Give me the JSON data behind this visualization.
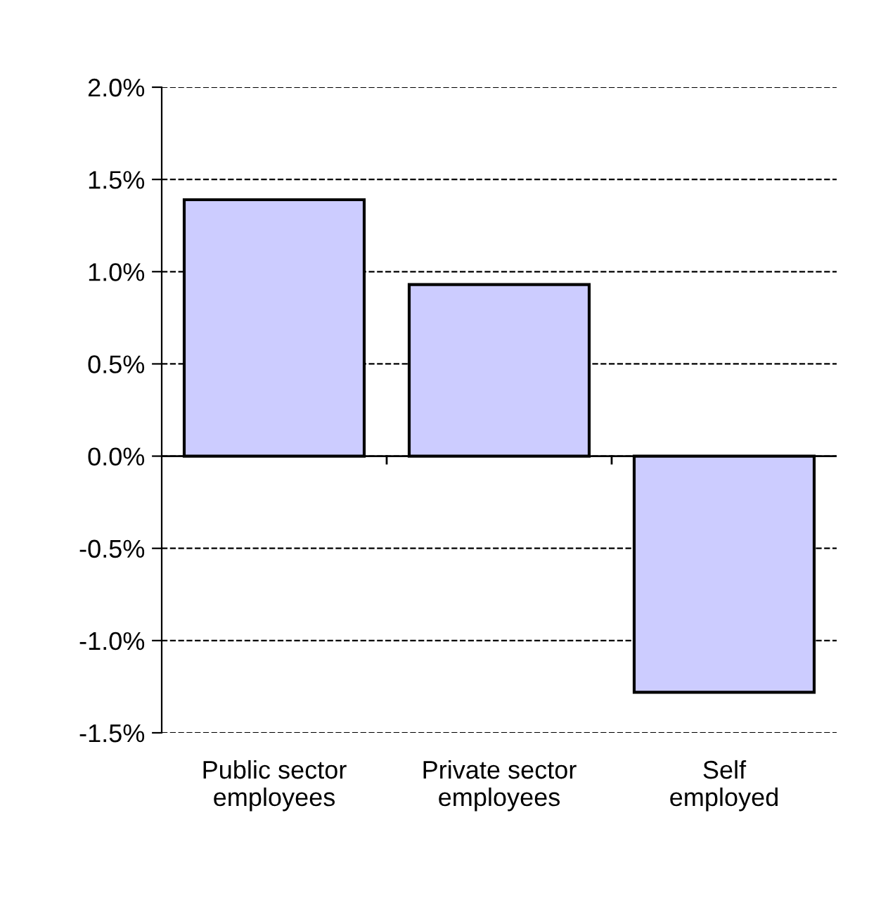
{
  "chart_data": {
    "type": "bar",
    "categories": [
      "Public sector\nemployees",
      "Private sector\nemployees",
      "Self\nemployed"
    ],
    "values": [
      1.39,
      0.93,
      -1.28
    ],
    "color": "#ccccff",
    "ylim": [
      -1.5,
      2.0
    ],
    "yticks": [
      {
        "value": -1.5,
        "label": "-1.5%"
      },
      {
        "value": -1.0,
        "label": "-1.0%"
      },
      {
        "value": -0.5,
        "label": "-0.5%"
      },
      {
        "value": 0,
        "label": "0.0%"
      },
      {
        "value": 0.5,
        "label": "0.5%"
      },
      {
        "value": 1.0,
        "label": "1.0%"
      },
      {
        "value": 1.5,
        "label": "1.5%"
      },
      {
        "value": 2.0,
        "label": "2.0%"
      }
    ],
    "grid": "y",
    "line_style": "dashed"
  }
}
